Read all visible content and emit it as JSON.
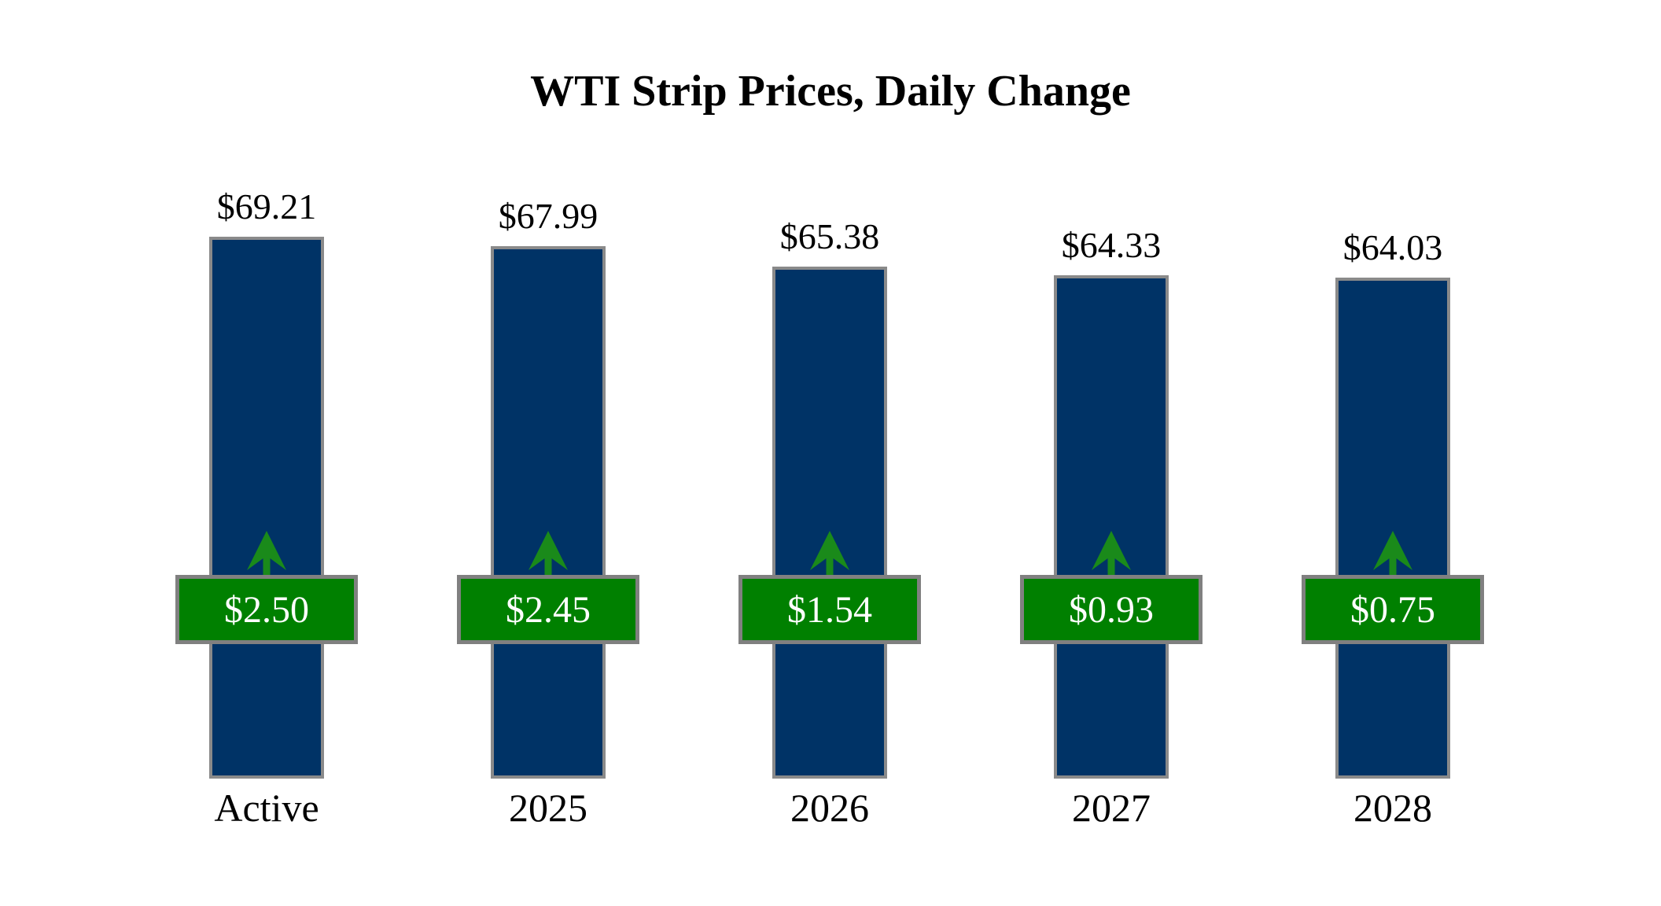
{
  "title": "WTI Strip Prices, Daily Change",
  "chart_data": {
    "type": "bar",
    "title": "WTI Strip Prices, Daily Change",
    "categories": [
      "Active",
      "2025",
      "2026",
      "2027",
      "2028"
    ],
    "series": [
      {
        "name": "strip_price",
        "values": [
          69.21,
          67.99,
          65.38,
          64.33,
          64.03
        ]
      },
      {
        "name": "daily_change",
        "values": [
          2.5,
          2.45,
          1.54,
          0.93,
          0.75
        ]
      }
    ],
    "value_labels": [
      "$69.21",
      "$67.99",
      "$65.38",
      "$64.33",
      "$64.03"
    ],
    "change_labels": [
      "$2.50",
      "$2.45",
      "$1.54",
      "$0.93",
      "$0.75"
    ],
    "xlabel": "",
    "ylabel": "",
    "ylim": [
      0,
      70
    ],
    "grid": false,
    "legend": "none",
    "change_direction": "up",
    "colors": {
      "bar_fill": "#003366",
      "bar_border": "#8a8a8a",
      "badge_fill": "#008000",
      "badge_border": "#808080",
      "badge_text": "#ffffff",
      "arrow": "#1a8a1a",
      "value_text": "#000000",
      "background": "#ffffff"
    }
  }
}
